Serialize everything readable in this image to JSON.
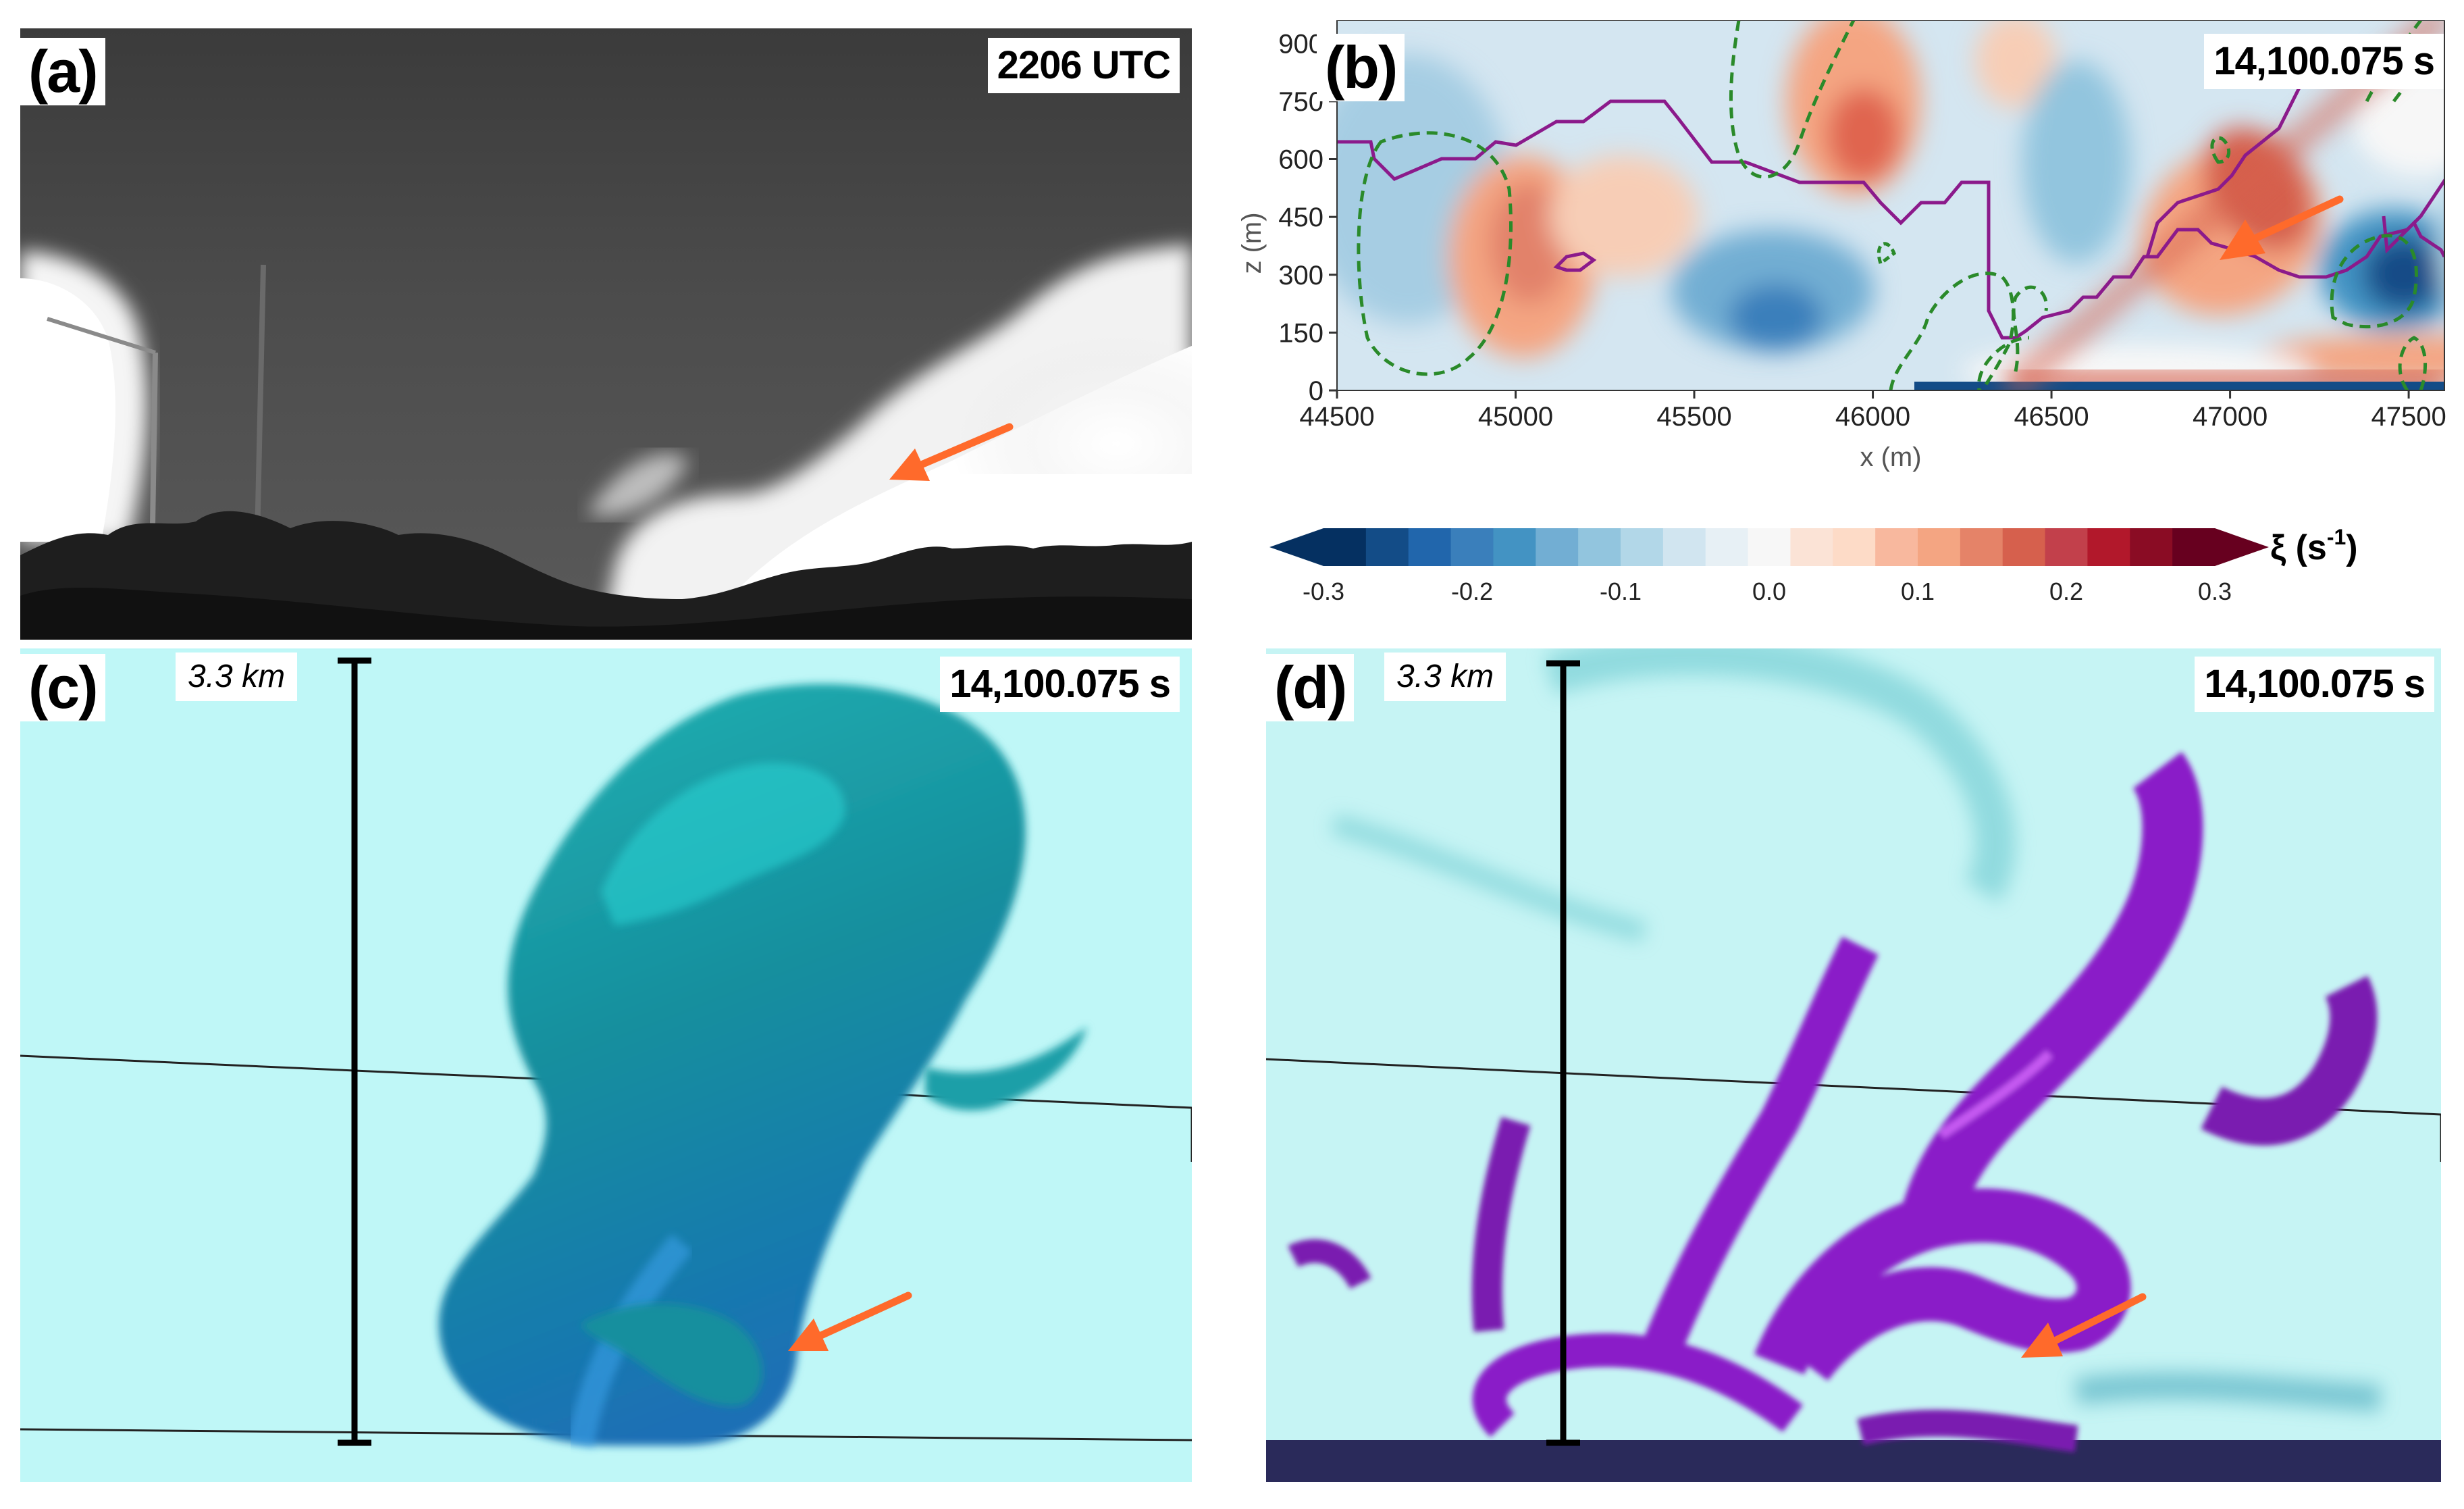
{
  "figure": {
    "panels": [
      {
        "id": "a",
        "label": "(a)",
        "time": "2206 UTC"
      },
      {
        "id": "b",
        "label": "(b)",
        "time": "14,100.075 s"
      },
      {
        "id": "c",
        "label": "(c)",
        "time": "14,100.075 s",
        "scale": "3.3 km"
      },
      {
        "id": "d",
        "label": "(d)",
        "time": "14,100.075 s",
        "scale": "3.3 km"
      }
    ],
    "colors": {
      "arrow": "#ff6a2b",
      "purple_contour": "#8b1a8b",
      "green_contour": "#2a8a2a",
      "render_bg": "#bff7f7"
    },
    "icons": [
      "arrow-icon"
    ]
  },
  "chart_data": {
    "type": "heatmap",
    "xlabel": "x (m)",
    "ylabel": "z (m)",
    "xlim": [
      44500,
      47600
    ],
    "ylim": [
      0,
      960
    ],
    "xticks": [
      "44500",
      "45000",
      "45500",
      "46000",
      "46500",
      "47000",
      "47500"
    ],
    "yticks": [
      "0",
      "150",
      "300",
      "450",
      "600",
      "750",
      "900"
    ],
    "colorbar": {
      "label": "ξ (s",
      "label_sup": "-1",
      "label_end": ")",
      "range": [
        -0.3,
        0.3
      ],
      "ticks": [
        "-0.3",
        "-0.2",
        "-0.1",
        "0.0",
        "0.1",
        "0.2",
        "0.3"
      ],
      "colors": [
        "#053061",
        "#134c87",
        "#2166ac",
        "#3a7fbb",
        "#4393c3",
        "#72aed3",
        "#92c5de",
        "#b2d7e8",
        "#d1e5f0",
        "#e7f0f5",
        "#f7f7f7",
        "#fbe3d6",
        "#fddbc7",
        "#f8b89e",
        "#f4a582",
        "#e58368",
        "#d6604d",
        "#c2404b",
        "#b2182b",
        "#8a0c24",
        "#67001f"
      ]
    },
    "grid": false
  }
}
